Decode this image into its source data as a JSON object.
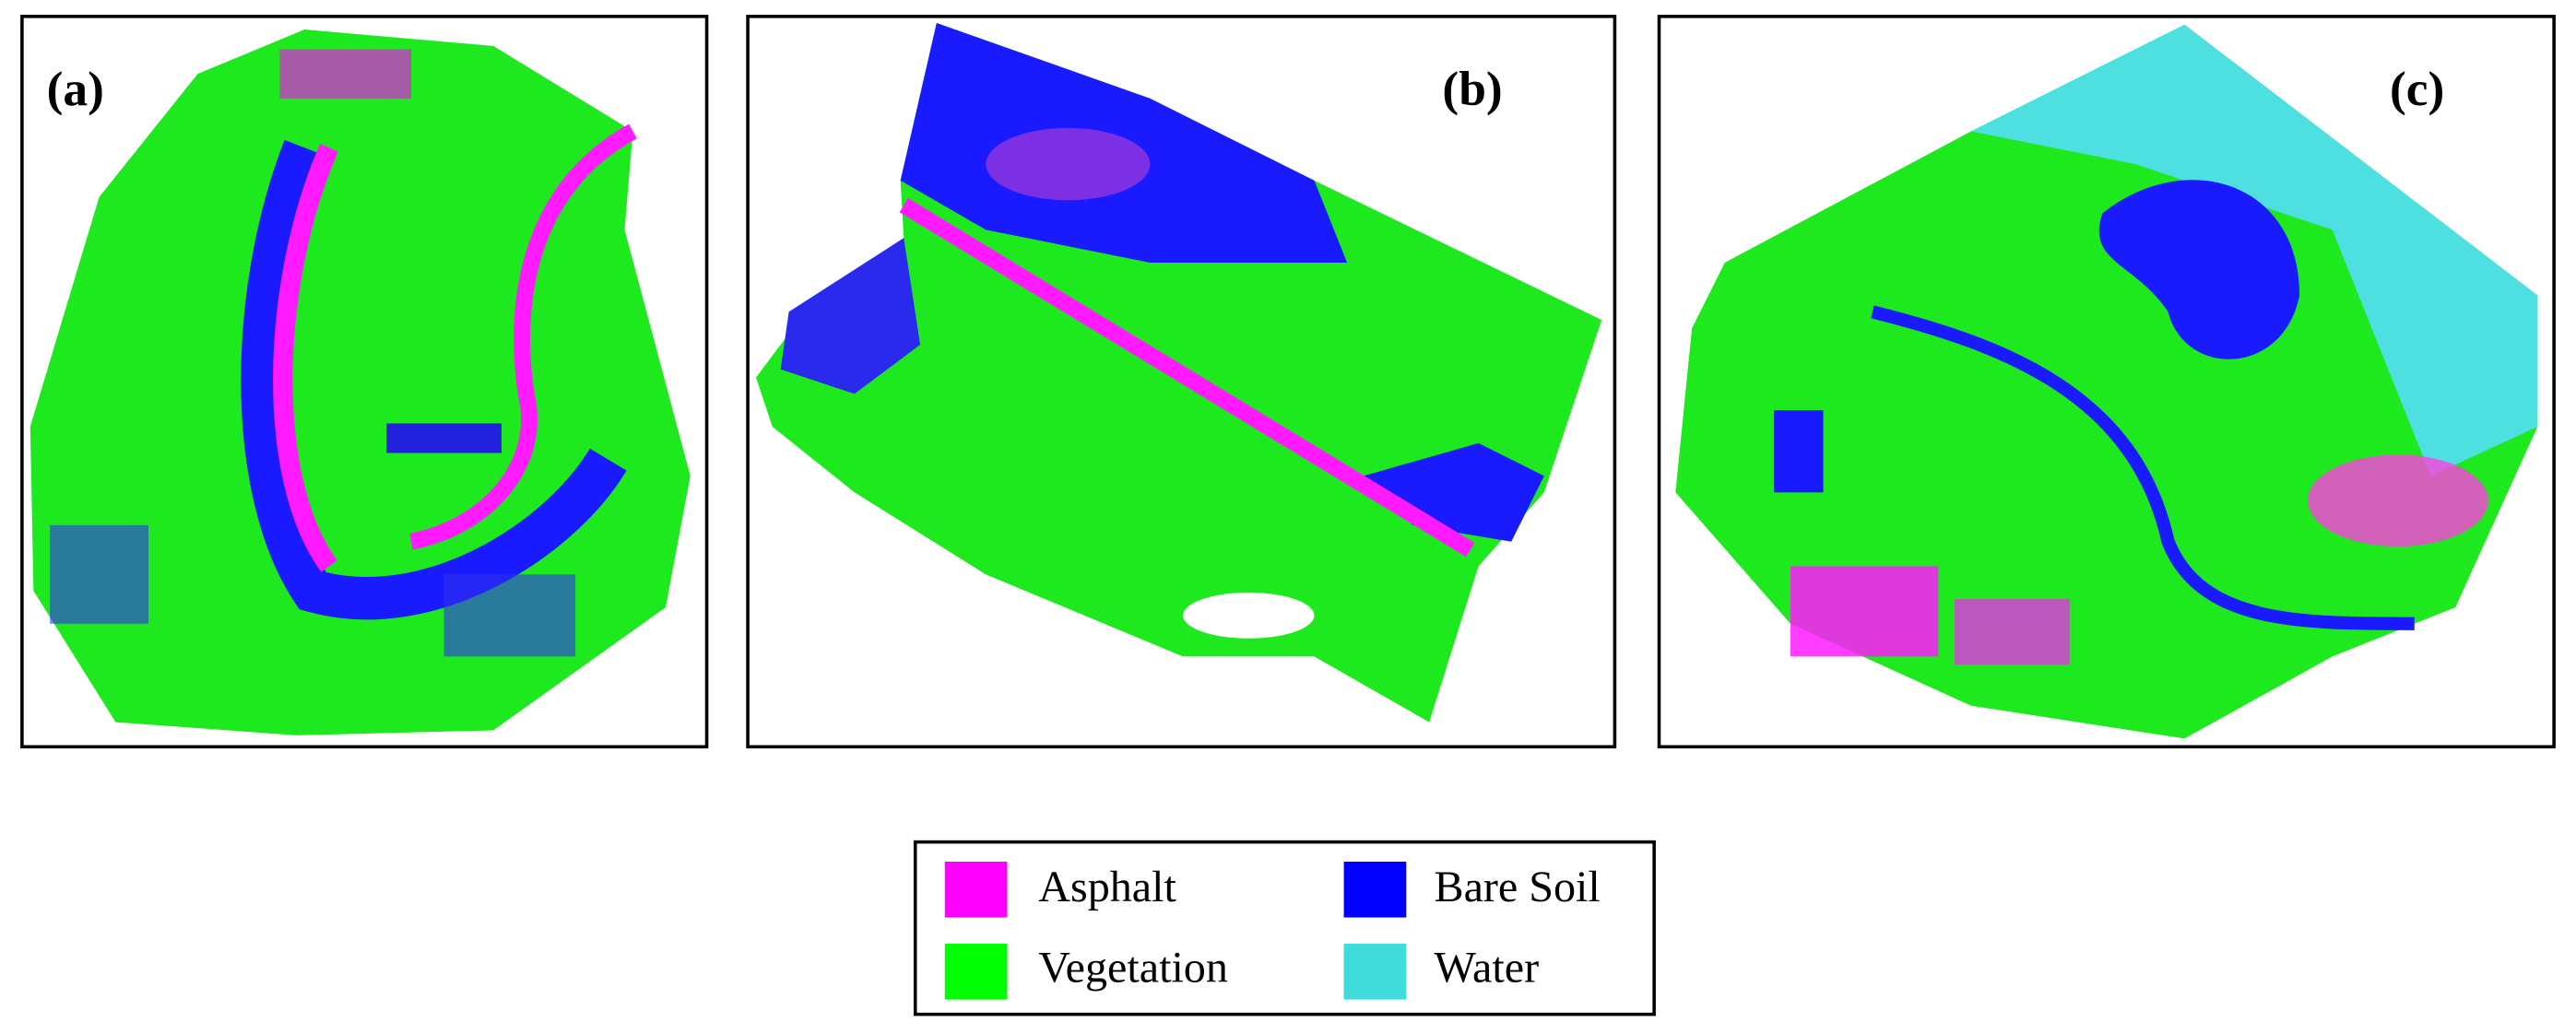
{
  "panels": [
    {
      "label": "(a)"
    },
    {
      "label": "(b)"
    },
    {
      "label": "(c)"
    }
  ],
  "legend": [
    {
      "name": "Asphalt",
      "color": "#ff00ff"
    },
    {
      "name": "Bare Soil",
      "color": "#0000ff"
    },
    {
      "name": "Vegetation",
      "color": "#00ff00"
    },
    {
      "name": "Water",
      "color": "#40dcdc"
    }
  ]
}
